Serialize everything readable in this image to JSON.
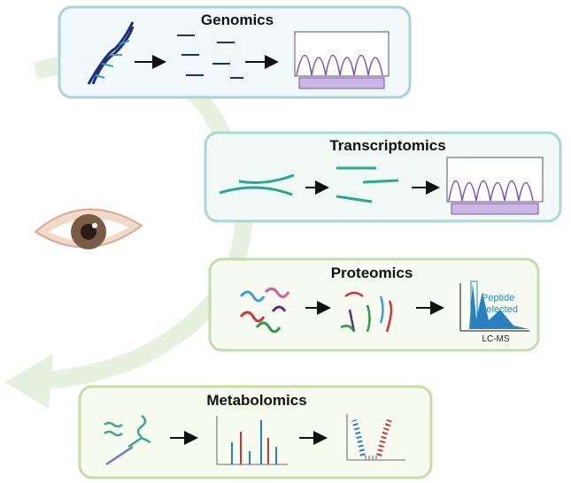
{
  "panels": [
    {
      "title": "Genomics"
    },
    {
      "title": "Transcriptomics"
    },
    {
      "title": "Proteomics",
      "annotation": [
        "Peptide",
        "selected"
      ],
      "axis_label": "LC-MS"
    },
    {
      "title": "Metabolomics"
    }
  ]
}
